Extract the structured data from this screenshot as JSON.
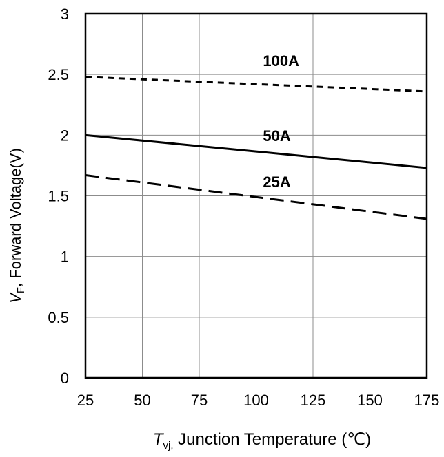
{
  "chart_data": {
    "type": "line",
    "title": "",
    "xlabel": {
      "symbol": "T",
      "subscript": "vj,",
      "text": " Junction Temperature (℃)"
    },
    "ylabel": {
      "symbol": "V",
      "subscript": "F",
      "text": ", Forward Voltage(V)"
    },
    "xlim": [
      25,
      175
    ],
    "ylim": [
      0,
      3
    ],
    "xticks": [
      25,
      50,
      75,
      100,
      125,
      150,
      175
    ],
    "yticks": [
      0,
      0.5,
      1,
      1.5,
      2,
      2.5,
      3
    ],
    "xtick_labels": [
      "25",
      "50",
      "75",
      "100",
      "125",
      "150",
      "175"
    ],
    "ytick_labels": [
      "0",
      "0.5",
      "1",
      "1.5",
      "2",
      "2.5",
      "3"
    ],
    "grid": true,
    "legend": "none",
    "series": [
      {
        "name": "100A",
        "style": "short-dash",
        "color": "#000000",
        "x": [
          25,
          175
        ],
        "y": [
          2.48,
          2.36
        ]
      },
      {
        "name": "50A",
        "style": "solid",
        "color": "#000000",
        "x": [
          25,
          175
        ],
        "y": [
          2.0,
          1.73
        ]
      },
      {
        "name": "25A",
        "style": "long-dash",
        "color": "#000000",
        "x": [
          25,
          175
        ],
        "y": [
          1.67,
          1.31
        ]
      }
    ],
    "annotations": [
      {
        "text": "100A",
        "x": 103,
        "y": 2.57
      },
      {
        "text": "50A",
        "x": 103,
        "y": 1.95
      },
      {
        "text": "25A",
        "x": 103,
        "y": 1.57
      }
    ]
  }
}
